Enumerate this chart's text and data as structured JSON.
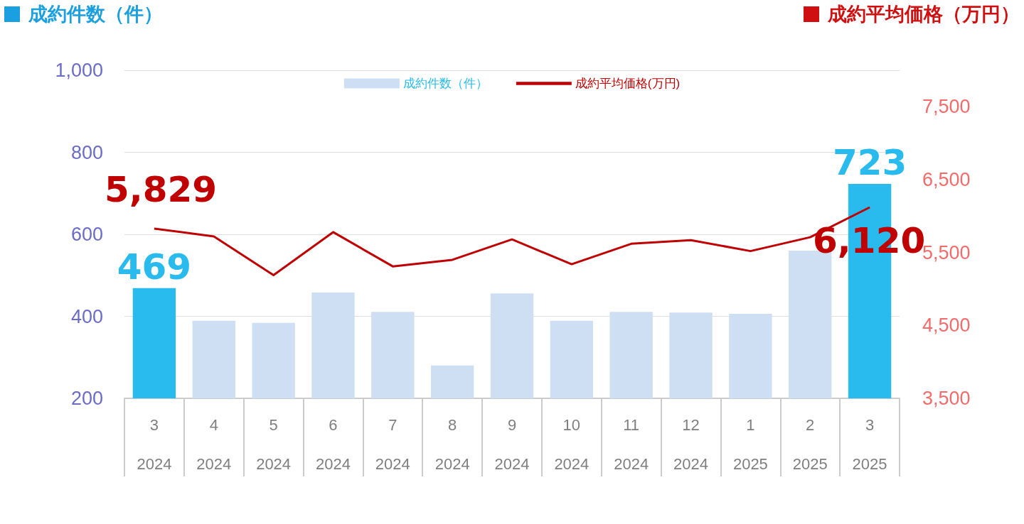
{
  "chart_data": {
    "type": "bar",
    "ylabel": "成約件数（件）",
    "y2label": "成約平均価格（万円）",
    "categories": [
      "3\n2024",
      "4\n2024",
      "5\n2024",
      "6\n2024",
      "7\n2024",
      "8\n2024",
      "9\n2024",
      "10\n2024",
      "11\n2024",
      "12\n2024",
      "1\n2025",
      "2\n2025",
      "3\n2025"
    ],
    "series": [
      {
        "name": "成約件数（件）",
        "color": "#cfdff3",
        "colors": [
          "#29bbed",
          "#cfdff3",
          "#cfdff3",
          "#cfdff3",
          "#cfdff3",
          "#cfdff3",
          "#cfdff3",
          "#cfdff3",
          "#cfdff3",
          "#cfdff3",
          "#cfdff3",
          "#cfdff3",
          "#29bbed"
        ],
        "values": [
          469,
          389,
          384,
          458,
          411,
          280,
          456,
          389,
          411,
          409,
          406,
          560,
          723
        ],
        "value_labels": [
          "469",
          null,
          null,
          null,
          null,
          null,
          null,
          null,
          null,
          null,
          null,
          null,
          "723"
        ]
      },
      {
        "name": "成約平均価格(万円)",
        "type": "line",
        "axis": "y2",
        "color": "#c00000",
        "values": [
          5829,
          5720,
          5190,
          5780,
          5310,
          5400,
          5680,
          5340,
          5620,
          5670,
          5520,
          5710,
          6120
        ],
        "value_labels": [
          "5,829",
          null,
          null,
          null,
          null,
          null,
          null,
          null,
          null,
          null,
          null,
          null,
          "6,120"
        ]
      }
    ],
    "ylim": [
      200,
      1000
    ],
    "yticks": [
      200,
      400,
      600,
      800,
      {
        "value": 1000,
        "label": "1,000"
      }
    ],
    "y2lim": [
      3500,
      8000
    ],
    "y2ticks": [
      {
        "value": 3500,
        "label": "3,500"
      },
      {
        "value": 4500,
        "label": "4,500"
      },
      {
        "value": 5500,
        "label": "5,500"
      },
      {
        "value": 6500,
        "label": "6,500"
      },
      {
        "value": 7500,
        "label": "7,500"
      }
    ],
    "grid": "y",
    "legend": "top",
    "marker": "none"
  }
}
